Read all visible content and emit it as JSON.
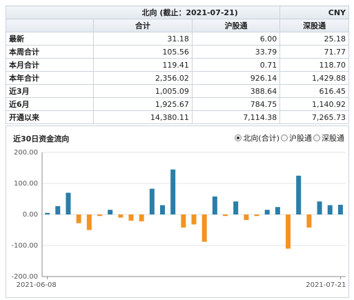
{
  "table": {
    "title": "北向 (截止：2021-07-21)",
    "currency": "CNY",
    "columns": [
      "合计",
      "沪股通",
      "深股通"
    ],
    "rows": [
      [
        "最新",
        "31.18",
        "6.00",
        "25.18"
      ],
      [
        "本周合计",
        "105.56",
        "33.79",
        "71.77"
      ],
      [
        "本月合计",
        "119.41",
        "0.71",
        "118.70"
      ],
      [
        "本年合计",
        "2,356.02",
        "926.14",
        "1,429.88"
      ],
      [
        "近3月",
        "1,005.09",
        "388.64",
        "616.45"
      ],
      [
        "近6月",
        "1,925.67",
        "784.75",
        "1,140.92"
      ],
      [
        "开通以来",
        "14,380.11",
        "7,114.38",
        "7,265.73"
      ]
    ]
  },
  "chart_data": {
    "type": "bar",
    "title": "近30日资金流向",
    "options": [
      "北向(合计)",
      "沪股通",
      "深股通"
    ],
    "selected_option": 0,
    "categories": [
      "2021-06-08",
      null,
      null,
      null,
      null,
      null,
      null,
      null,
      null,
      null,
      null,
      null,
      null,
      null,
      null,
      null,
      null,
      null,
      null,
      null,
      null,
      null,
      null,
      null,
      null,
      null,
      null,
      null,
      "2021-07-21"
    ],
    "values": [
      5,
      27,
      70,
      -28,
      -50,
      -5,
      15,
      -10,
      -20,
      -22,
      83,
      30,
      145,
      -42,
      -32,
      -88,
      58,
      -5,
      42,
      -18,
      -5,
      15,
      24,
      -110,
      125,
      -42,
      42,
      30,
      31.18
    ],
    "positive_color": "#2b7ea8",
    "negative_color": "#f39323",
    "ylim": [
      -200,
      200
    ],
    "yticks": [
      {
        "value": -200,
        "label": "-200.00"
      },
      {
        "value": -100,
        "label": "-100.00"
      },
      {
        "value": 0,
        "label": "0.00"
      },
      {
        "value": 100,
        "label": "100.00"
      },
      {
        "value": 200,
        "label": "200.00"
      }
    ],
    "grid": true
  }
}
